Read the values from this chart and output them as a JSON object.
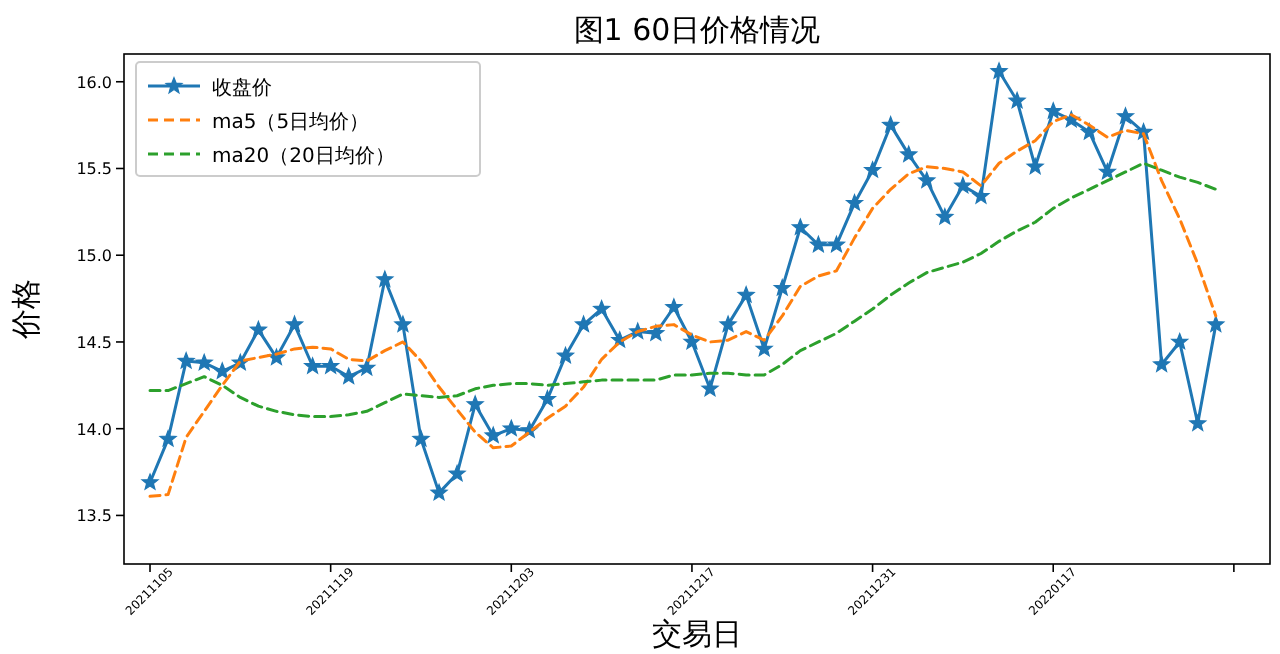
{
  "chart_data": {
    "type": "line",
    "title": "图1  60日价格情况",
    "xlabel": "交易日",
    "ylabel": "价格",
    "legend": "top left",
    "categories": [
      "20211105",
      null,
      null,
      null,
      null,
      null,
      null,
      null,
      null,
      null,
      "20211119",
      null,
      null,
      null,
      null,
      null,
      null,
      null,
      null,
      null,
      "20211203",
      null,
      null,
      null,
      null,
      null,
      null,
      null,
      null,
      null,
      "20211217",
      null,
      null,
      null,
      null,
      null,
      null,
      null,
      null,
      null,
      "20211231",
      null,
      null,
      null,
      null,
      null,
      null,
      null,
      null,
      null,
      "20220117",
      null,
      null,
      null,
      null,
      null,
      null,
      null,
      null,
      null
    ],
    "ylim": [
      13.22,
      16.16
    ],
    "yticks": [
      {
        "value": 13.5,
        "label": "13.5"
      },
      {
        "value": 14,
        "label": "14.0"
      },
      {
        "value": 14.5,
        "label": "14.5"
      },
      {
        "value": 15,
        "label": "15.0"
      },
      {
        "value": 15.5,
        "label": "15.5"
      },
      {
        "value": 16,
        "label": "16.0"
      }
    ],
    "series": [
      {
        "name": "收盘价",
        "color": "#1f77b4",
        "marker": "star",
        "line_style": "solid",
        "values": [
          13.69,
          13.94,
          14.39,
          14.38,
          14.33,
          14.38,
          14.57,
          14.41,
          14.6,
          14.36,
          14.36,
          14.3,
          14.35,
          14.86,
          14.6,
          13.94,
          13.63,
          13.74,
          14.14,
          13.96,
          14.0,
          13.99,
          14.17,
          14.42,
          14.6,
          14.69,
          14.51,
          14.56,
          14.55,
          14.7,
          14.5,
          14.23,
          14.6,
          14.77,
          14.46,
          14.81,
          15.16,
          15.06,
          15.06,
          15.3,
          15.49,
          15.75,
          15.58,
          15.43,
          15.22,
          15.4,
          15.34,
          16.06,
          15.89,
          15.51,
          15.83,
          15.78,
          15.71,
          15.48,
          15.8,
          15.71,
          14.37,
          14.5,
          14.03,
          14.6
        ]
      },
      {
        "name": "ma5（5日均价）",
        "color": "#ff7f0e",
        "marker": "none",
        "line_style": "dashed",
        "values": [
          13.61,
          13.62,
          13.95,
          14.1,
          14.25,
          14.39,
          14.41,
          14.43,
          14.46,
          14.47,
          14.46,
          14.4,
          14.39,
          14.45,
          14.5,
          14.39,
          14.24,
          14.11,
          13.98,
          13.89,
          13.9,
          13.98,
          14.06,
          14.13,
          14.24,
          14.4,
          14.5,
          14.56,
          14.59,
          14.6,
          14.54,
          14.5,
          14.51,
          14.56,
          14.51,
          14.65,
          14.82,
          14.88,
          14.91,
          15.1,
          15.27,
          15.38,
          15.47,
          15.51,
          15.5,
          15.48,
          15.4,
          15.53,
          15.6,
          15.66,
          15.77,
          15.81,
          15.75,
          15.68,
          15.72,
          15.7,
          15.43,
          15.21,
          14.95,
          14.65
        ]
      },
      {
        "name": "ma20（20日均价）",
        "color": "#2ca02c",
        "marker": "none",
        "line_style": "dashed",
        "values": [
          14.22,
          14.22,
          14.26,
          14.3,
          14.25,
          14.18,
          14.13,
          14.1,
          14.08,
          14.07,
          14.07,
          14.08,
          14.1,
          14.15,
          14.2,
          14.19,
          14.18,
          14.19,
          14.23,
          14.25,
          14.26,
          14.26,
          14.25,
          14.26,
          14.27,
          14.28,
          14.28,
          14.28,
          14.28,
          14.31,
          14.31,
          14.32,
          14.32,
          14.31,
          14.31,
          14.37,
          14.45,
          14.5,
          14.55,
          14.62,
          14.69,
          14.77,
          14.84,
          14.9,
          14.93,
          14.96,
          15.01,
          15.08,
          15.14,
          15.19,
          15.27,
          15.33,
          15.38,
          15.43,
          15.48,
          15.53,
          15.49,
          15.45,
          15.42,
          15.38
        ]
      }
    ]
  }
}
